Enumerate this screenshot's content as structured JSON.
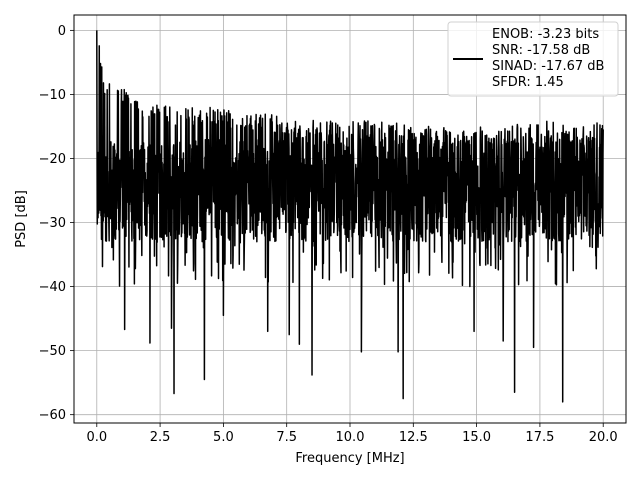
{
  "chart_data": {
    "type": "line",
    "xlabel": "Frequency [MHz]",
    "ylabel": "PSD [dB]",
    "xlim": [
      -0.9,
      20.9
    ],
    "ylim": [
      -61.3,
      2.4
    ],
    "xticks": [
      0.0,
      2.5,
      5.0,
      7.5,
      10.0,
      12.5,
      15.0,
      17.5,
      20.0
    ],
    "xtick_labels": [
      "0.0",
      "2.5",
      "5.0",
      "7.5",
      "10.0",
      "12.5",
      "15.0",
      "17.5",
      "20.0"
    ],
    "yticks": [
      0,
      -10,
      -20,
      -30,
      -40,
      -50,
      -60
    ],
    "ytick_labels": [
      "0",
      "−10",
      "−20",
      "−30",
      "−40",
      "−50",
      "−60"
    ],
    "grid": true,
    "legend_position": "top-right",
    "legend_lines": [
      "ENOB: -3.23 bits",
      "SNR: -17.58 dB",
      "SINAD: -17.67 dB",
      "SFDR: 1.45"
    ],
    "series": [
      {
        "color": "#000000",
        "x_range": [
          0,
          20
        ],
        "num_points": 2048,
        "peak": {
          "x": 0.0,
          "y": 0.0
        },
        "upper_envelope": [
          [
            0.0,
            0
          ],
          [
            0.1,
            -2
          ],
          [
            0.2,
            -5
          ],
          [
            0.3,
            -7
          ],
          [
            0.5,
            -8
          ],
          [
            1.0,
            -9
          ],
          [
            2.0,
            -11
          ],
          [
            3.0,
            -12
          ],
          [
            4.0,
            -12
          ],
          [
            5.0,
            -12
          ],
          [
            6.0,
            -13
          ],
          [
            7.0,
            -13
          ],
          [
            8.0,
            -14
          ],
          [
            9.0,
            -14
          ],
          [
            10.0,
            -14
          ],
          [
            11.0,
            -14
          ],
          [
            12.0,
            -14.5
          ],
          [
            13.0,
            -15
          ],
          [
            14.0,
            -15
          ],
          [
            15.0,
            -15
          ],
          [
            16.0,
            -15
          ],
          [
            17.0,
            -14
          ],
          [
            18.0,
            -14
          ],
          [
            19.0,
            -15
          ],
          [
            20.0,
            -14
          ]
        ],
        "body_range": [
          -33,
          -17
        ],
        "notable_dips": [
          {
            "x": 1.1,
            "y": -46.7
          },
          {
            "x": 2.1,
            "y": -48.8
          },
          {
            "x": 2.95,
            "y": -46.5
          },
          {
            "x": 3.05,
            "y": -56.7
          },
          {
            "x": 4.25,
            "y": -54.5
          },
          {
            "x": 5.0,
            "y": -44.5
          },
          {
            "x": 6.75,
            "y": -47.0
          },
          {
            "x": 7.6,
            "y": -47.5
          },
          {
            "x": 8.0,
            "y": -49.0
          },
          {
            "x": 8.5,
            "y": -53.8
          },
          {
            "x": 10.45,
            "y": -50.2
          },
          {
            "x": 11.9,
            "y": -50.2
          },
          {
            "x": 12.1,
            "y": -57.5
          },
          {
            "x": 14.9,
            "y": -47.0
          },
          {
            "x": 16.05,
            "y": -48.5
          },
          {
            "x": 16.5,
            "y": -56.5
          },
          {
            "x": 17.25,
            "y": -49.5
          },
          {
            "x": 18.4,
            "y": -58.0
          }
        ]
      }
    ]
  }
}
